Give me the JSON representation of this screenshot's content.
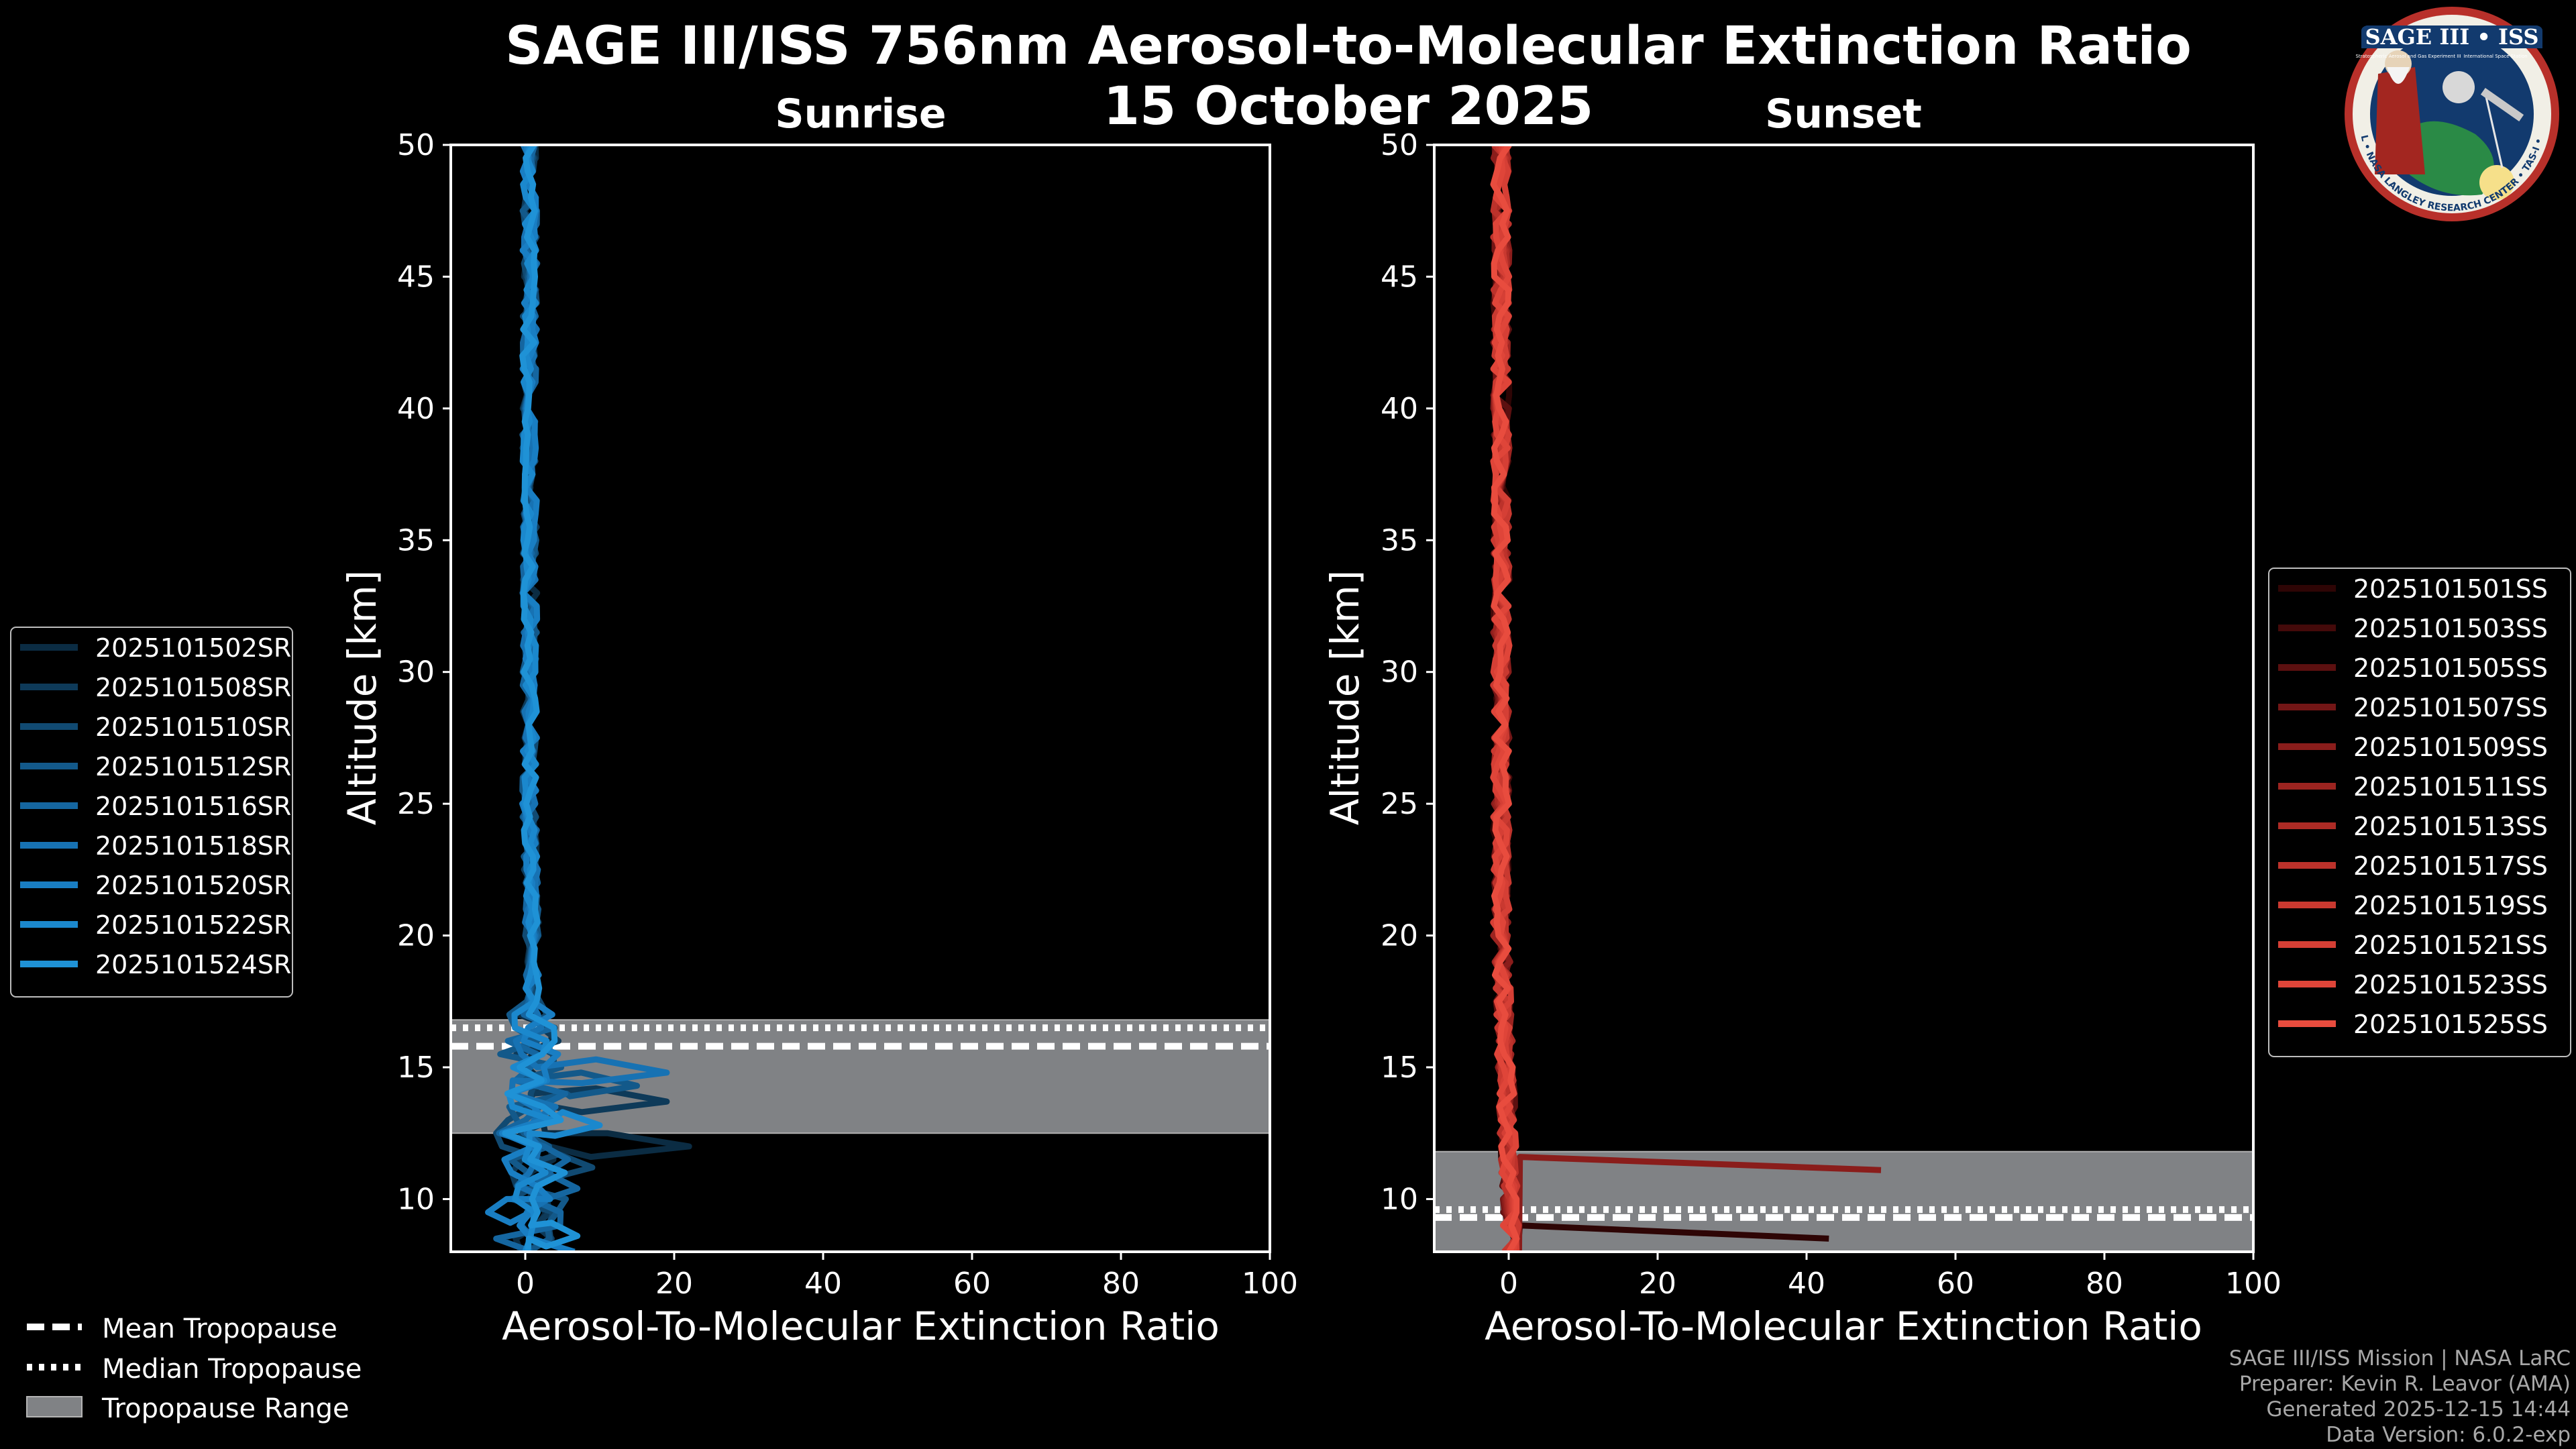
{
  "title": "SAGE III/ISS 756nm Aerosol-to-Molecular Extinction Ratio",
  "subtitle": "15 October 2025",
  "colors": {
    "background": "#000000",
    "axes": "#ffffff",
    "tropopause_range": "#808285",
    "sunrise": "#1f8fd0",
    "sunset": "#e8483c"
  },
  "footer": {
    "line1": "SAGE III/ISS Mission | NASA LaRC",
    "line2": "Preparer: Kevin R. Leavor (AMA)",
    "line3": "Generated 2025-12-15 14:44",
    "line4": "Data Version: 6.0.2-exp"
  },
  "badge": {
    "title": "SAGE III • ISS",
    "sub1": "Stratospheric Aerosol and Gas Experiment III",
    "sub2": "International Space Station",
    "ring": "BALL • NASA LANGLEY RESEARCH CENTER • TAS-I • ESA"
  },
  "tropopause_legend": [
    {
      "label": "Mean Tropopause",
      "style": "dashed"
    },
    {
      "label": "Median Tropopause",
      "style": "dotted"
    },
    {
      "label": "Tropopause Range",
      "style": "patch"
    }
  ],
  "chart_data": [
    {
      "type": "line",
      "title": "Sunrise",
      "xlabel": "Aerosol-To-Molecular Extinction Ratio",
      "ylabel": "Altitude [km]",
      "xlim": [
        -10,
        100
      ],
      "ylim": [
        8,
        50
      ],
      "xticks": [
        0,
        20,
        40,
        60,
        80,
        100
      ],
      "yticks": [
        10,
        15,
        20,
        25,
        30,
        35,
        40,
        45,
        50
      ],
      "legend_position": "left",
      "tropopause": {
        "mean": 15.8,
        "median": 16.5,
        "range": [
          12.5,
          16.8
        ]
      },
      "series": [
        {
          "name": "2025101502SR",
          "color": "#0b2c43",
          "spike": {
            "alt": 12.0,
            "value": 22
          }
        },
        {
          "name": "2025101508SR",
          "color": "#0e3a59",
          "spike": {
            "alt": 13.7,
            "value": 19
          }
        },
        {
          "name": "2025101510SR",
          "color": "#114a72",
          "spike": {
            "alt": 11.2,
            "value": 9
          }
        },
        {
          "name": "2025101512SR",
          "color": "#13598a",
          "spike": {
            "alt": 14.3,
            "value": 15
          }
        },
        {
          "name": "2025101516SR",
          "color": "#1566a0",
          "spike": {
            "alt": 10.4,
            "value": 7
          }
        },
        {
          "name": "2025101518SR",
          "color": "#1772b3",
          "spike": {
            "alt": 14.8,
            "value": 19
          }
        },
        {
          "name": "2025101520SR",
          "color": "#197ec3",
          "spike": {
            "alt": 9.5,
            "value": -5
          }
        },
        {
          "name": "2025101522SR",
          "color": "#1b88cd",
          "spike": {
            "alt": 12.8,
            "value": 10
          }
        },
        {
          "name": "2025101524SR",
          "color": "#1f92d6",
          "spike": {
            "alt": 8.6,
            "value": 7
          }
        }
      ]
    },
    {
      "type": "line",
      "title": "Sunset",
      "xlabel": "Aerosol-To-Molecular Extinction Ratio",
      "ylabel": "Altitude [km]",
      "xlim": [
        -10,
        100
      ],
      "ylim": [
        8,
        50
      ],
      "xticks": [
        0,
        20,
        40,
        60,
        80,
        100
      ],
      "yticks": [
        10,
        15,
        20,
        25,
        30,
        35,
        40,
        45,
        50
      ],
      "legend_position": "right",
      "tropopause": {
        "mean": 9.3,
        "median": 9.6,
        "range": [
          8.0,
          11.8
        ]
      },
      "series": [
        {
          "name": "2025101501SS",
          "color": "#2e0505",
          "spike": {
            "alt": 8.5,
            "value": 43
          }
        },
        {
          "name": "2025101503SS",
          "color": "#440a0a",
          "spike": null
        },
        {
          "name": "2025101505SS",
          "color": "#5c1010",
          "spike": null
        },
        {
          "name": "2025101507SS",
          "color": "#731616",
          "spike": null
        },
        {
          "name": "2025101509SS",
          "color": "#8a1d1b",
          "spike": {
            "alt": 11.1,
            "value": 50
          }
        },
        {
          "name": "2025101511SS",
          "color": "#9c2420",
          "spike": null
        },
        {
          "name": "2025101513SS",
          "color": "#ad2b25",
          "spike": null
        },
        {
          "name": "2025101517SS",
          "color": "#bc322b",
          "spike": null
        },
        {
          "name": "2025101519SS",
          "color": "#c93930",
          "spike": null
        },
        {
          "name": "2025101521SS",
          "color": "#d53f35",
          "spike": null
        },
        {
          "name": "2025101523SS",
          "color": "#df4539",
          "spike": null
        },
        {
          "name": "2025101525SS",
          "color": "#e84c3e",
          "spike": null
        }
      ]
    }
  ]
}
